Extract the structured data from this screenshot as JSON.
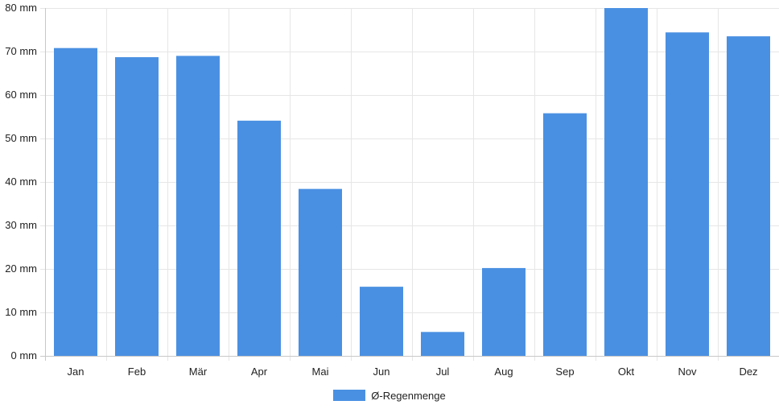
{
  "chart_data": {
    "type": "bar",
    "title": "",
    "xlabel": "",
    "ylabel": "",
    "categories": [
      "Jan",
      "Feb",
      "Mär",
      "Apr",
      "Mai",
      "Jun",
      "Jul",
      "Aug",
      "Sep",
      "Okt",
      "Nov",
      "Dez"
    ],
    "series": [
      {
        "name": "Ø-Regenmenge",
        "color": "#4a90e2",
        "values": [
          70.8,
          68.7,
          69.0,
          54.1,
          38.4,
          15.9,
          5.5,
          20.2,
          55.8,
          80.0,
          74.4,
          73.5
        ]
      }
    ],
    "ylim": [
      0,
      80
    ],
    "yticks": [
      "0 mm",
      "10 mm",
      "20 mm",
      "30 mm",
      "40 mm",
      "50 mm",
      "60 mm",
      "70 mm",
      "80 mm"
    ],
    "grid": true,
    "legend": "bottom-center"
  },
  "legend": {
    "label": "Ø-Regenmenge",
    "color": "#4a90e2"
  }
}
